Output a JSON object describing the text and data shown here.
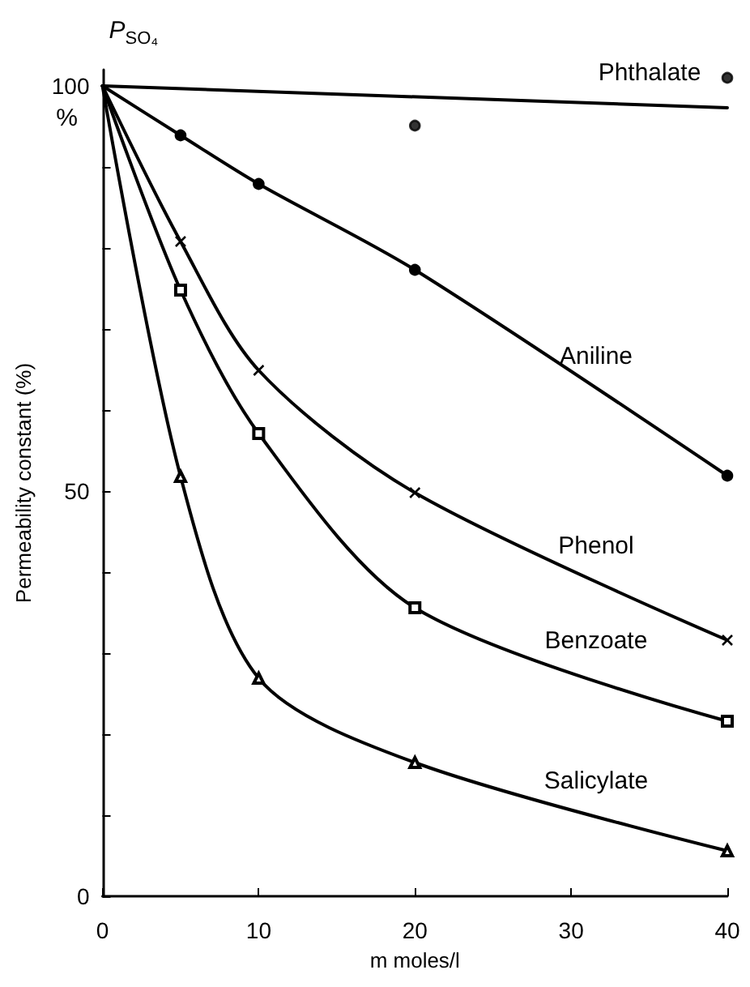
{
  "chart_data": {
    "type": "line",
    "xlabel": "m moles/l",
    "ylabel": "Permeability constant (%)",
    "annotations": [
      "P$_{SO₄}$",
      "%"
    ],
    "xlim": [
      0,
      40
    ],
    "xticks": [
      0,
      10,
      20,
      30,
      40
    ],
    "ylim": [
      0,
      102
    ],
    "yticks": [
      0,
      {
        "value": 10,
        "label": null
      },
      {
        "value": 20,
        "label": null
      },
      {
        "value": 30,
        "label": null
      },
      {
        "value": 40,
        "label": null
      },
      50,
      {
        "value": 60,
        "label": null
      },
      {
        "value": 70,
        "label": null
      },
      {
        "value": 80,
        "label": null
      },
      {
        "value": 90,
        "label": null
      },
      100
    ],
    "grid": false,
    "legend": false,
    "line_style": "solid",
    "series": [
      {
        "name": "Phthalate",
        "type": "scatter",
        "color": "#000000",
        "marker": "circle",
        "x": [
          20,
          40
        ],
        "values": [
          95.1,
          101
        ]
      },
      {
        "name": "Aniline",
        "color": "#000000",
        "marker": "circle",
        "x": [
          0,
          5,
          10,
          20,
          40
        ],
        "values": [
          100,
          93.9,
          87.9,
          77.3,
          51.9
        ]
      },
      {
        "name": "Phenol",
        "color": "#000000",
        "marker": "cross",
        "x": [
          0,
          5,
          10,
          20,
          40
        ],
        "values": [
          100,
          80.8,
          64.9,
          49.8,
          31.6
        ]
      },
      {
        "name": "Benzoate",
        "color": "#000000",
        "marker": "square",
        "x": [
          0,
          5,
          10,
          20,
          40
        ],
        "values": [
          100,
          74.8,
          57.1,
          35.6,
          21.6
        ]
      },
      {
        "name": "Salicylate",
        "color": "#000000",
        "marker": "triangle",
        "x": [
          0,
          5,
          10,
          20,
          40
        ],
        "values": [
          100,
          51.8,
          26.9,
          16.5,
          5.6
        ]
      },
      {
        "type": "line",
        "color": "#000000",
        "marker": "none",
        "x": [
          0,
          40
        ],
        "values": [
          100,
          97.3
        ]
      }
    ]
  }
}
